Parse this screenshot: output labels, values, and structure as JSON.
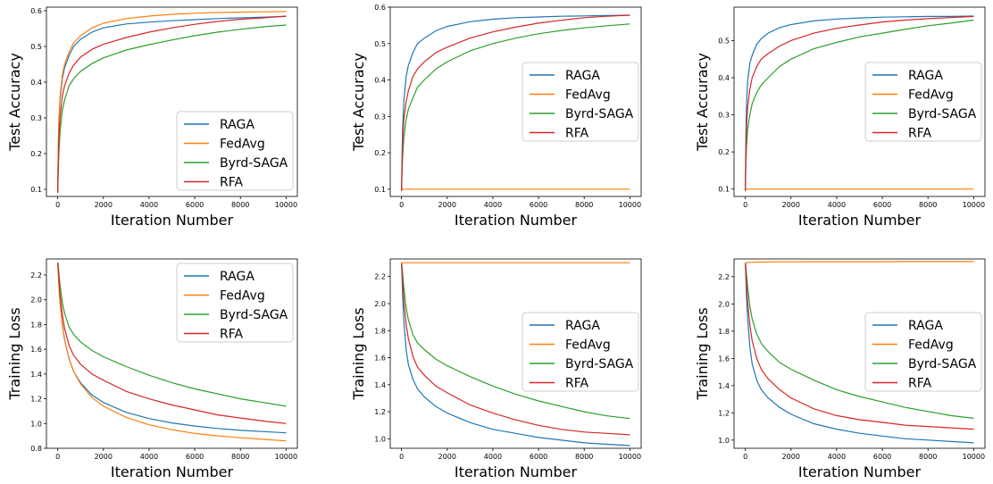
{
  "figure": {
    "grid": "2x3"
  },
  "colors": {
    "RAGA": "#1f77b4",
    "FedAvg": "#ff7f0e",
    "Byrd-SAGA": "#2ca02c",
    "RFA": "#d62728"
  },
  "chart_data": [
    {
      "type": "line",
      "title": "",
      "xlabel": "Iteration Number",
      "ylabel": "Test Accuracy",
      "xlim": [
        0,
        10000
      ],
      "ylim": [
        0.08,
        0.61
      ],
      "grid": false,
      "legend": "lower-right",
      "xticks": [
        "0",
        "2000",
        "4000",
        "6000",
        "8000",
        "10000"
      ],
      "yticks": [
        0.1,
        0.2,
        0.3,
        0.4,
        0.5,
        0.6
      ],
      "ytick_labels": [
        "0.1",
        "0.2",
        "0.3",
        "0.4",
        "0.5",
        "0.6"
      ],
      "x": [
        0,
        25,
        50,
        100,
        200,
        300,
        500,
        700,
        1000,
        1500,
        2000,
        3000,
        4000,
        5000,
        6000,
        7000,
        8000,
        9000,
        10000
      ],
      "series": [
        {
          "name": "RAGA",
          "values": [
            0.09,
            0.22,
            0.28,
            0.35,
            0.41,
            0.44,
            0.475,
            0.5,
            0.52,
            0.54,
            0.552,
            0.563,
            0.568,
            0.572,
            0.575,
            0.578,
            0.58,
            0.582,
            0.584
          ]
        },
        {
          "name": "FedAvg",
          "values": [
            0.09,
            0.23,
            0.29,
            0.36,
            0.42,
            0.45,
            0.485,
            0.51,
            0.53,
            0.552,
            0.565,
            0.578,
            0.585,
            0.59,
            0.593,
            0.595,
            0.596,
            0.597,
            0.598
          ]
        },
        {
          "name": "Byrd-SAGA",
          "values": [
            0.09,
            0.15,
            0.2,
            0.26,
            0.32,
            0.35,
            0.39,
            0.41,
            0.43,
            0.452,
            0.468,
            0.49,
            0.505,
            0.518,
            0.53,
            0.54,
            0.548,
            0.555,
            0.56
          ]
        },
        {
          "name": "RFA",
          "values": [
            0.09,
            0.18,
            0.24,
            0.3,
            0.36,
            0.39,
            0.425,
            0.448,
            0.47,
            0.492,
            0.506,
            0.525,
            0.54,
            0.552,
            0.562,
            0.57,
            0.576,
            0.58,
            0.585
          ]
        }
      ]
    },
    {
      "type": "line",
      "title": "",
      "xlabel": "Iteration Number",
      "ylabel": "Test Accuracy",
      "xlim": [
        0,
        10000
      ],
      "ylim": [
        0.08,
        0.6
      ],
      "grid": false,
      "legend": "center-right",
      "xticks": [
        "0",
        "2000",
        "4000",
        "6000",
        "8000",
        "10000"
      ],
      "yticks": [
        0.1,
        0.2,
        0.3,
        0.4,
        0.5,
        0.6
      ],
      "ytick_labels": [
        "0.1",
        "0.2",
        "0.3",
        "0.4",
        "0.5",
        "0.6"
      ],
      "x": [
        0,
        25,
        50,
        100,
        200,
        300,
        500,
        700,
        1000,
        1500,
        2000,
        3000,
        4000,
        5000,
        6000,
        7000,
        8000,
        9000,
        10000
      ],
      "series": [
        {
          "name": "RAGA",
          "values": [
            0.095,
            0.2,
            0.27,
            0.34,
            0.41,
            0.44,
            0.475,
            0.5,
            0.515,
            0.535,
            0.547,
            0.56,
            0.567,
            0.571,
            0.573,
            0.575,
            0.576,
            0.577,
            0.578
          ]
        },
        {
          "name": "FedAvg",
          "values": [
            0.1,
            0.1,
            0.1,
            0.1,
            0.1,
            0.1,
            0.1,
            0.1,
            0.1,
            0.1,
            0.1,
            0.1,
            0.1,
            0.1,
            0.1,
            0.1,
            0.1,
            0.1,
            0.1
          ]
        },
        {
          "name": "Byrd-SAGA",
          "values": [
            0.095,
            0.15,
            0.19,
            0.24,
            0.29,
            0.32,
            0.35,
            0.38,
            0.4,
            0.43,
            0.45,
            0.48,
            0.5,
            0.515,
            0.527,
            0.536,
            0.543,
            0.549,
            0.554
          ]
        },
        {
          "name": "RFA",
          "values": [
            0.095,
            0.18,
            0.23,
            0.29,
            0.34,
            0.37,
            0.41,
            0.43,
            0.45,
            0.475,
            0.49,
            0.515,
            0.532,
            0.545,
            0.556,
            0.564,
            0.571,
            0.575,
            0.578
          ]
        }
      ]
    },
    {
      "type": "line",
      "title": "",
      "xlabel": "Iteration Number",
      "ylabel": "Test Accuracy",
      "xlim": [
        0,
        10000
      ],
      "ylim": [
        0.08,
        0.59
      ],
      "grid": false,
      "legend": "center-right",
      "xticks": [
        "0",
        "2000",
        "4000",
        "6000",
        "8000",
        "10000"
      ],
      "yticks": [
        0.1,
        0.2,
        0.3,
        0.4,
        0.5
      ],
      "ytick_labels": [
        "0.1",
        "0.2",
        "0.3",
        "0.4",
        "0.5"
      ],
      "x": [
        0,
        25,
        50,
        100,
        200,
        300,
        500,
        700,
        1000,
        1500,
        2000,
        3000,
        4000,
        5000,
        6000,
        7000,
        8000,
        9000,
        10000
      ],
      "series": [
        {
          "name": "RAGA",
          "values": [
            0.095,
            0.25,
            0.32,
            0.39,
            0.44,
            0.46,
            0.49,
            0.505,
            0.52,
            0.535,
            0.543,
            0.553,
            0.558,
            0.561,
            0.563,
            0.564,
            0.565,
            0.565,
            0.566
          ]
        },
        {
          "name": "FedAvg",
          "values": [
            0.1,
            0.1,
            0.1,
            0.1,
            0.1,
            0.1,
            0.1,
            0.1,
            0.1,
            0.1,
            0.1,
            0.1,
            0.1,
            0.1,
            0.1,
            0.1,
            0.1,
            0.1,
            0.1
          ]
        },
        {
          "name": "Byrd-SAGA",
          "values": [
            0.095,
            0.17,
            0.21,
            0.26,
            0.3,
            0.33,
            0.36,
            0.38,
            0.4,
            0.43,
            0.45,
            0.478,
            0.495,
            0.51,
            0.52,
            0.53,
            0.54,
            0.547,
            0.555
          ]
        },
        {
          "name": "RFA",
          "values": [
            0.095,
            0.2,
            0.26,
            0.32,
            0.37,
            0.4,
            0.43,
            0.45,
            0.465,
            0.485,
            0.5,
            0.52,
            0.533,
            0.542,
            0.55,
            0.555,
            0.559,
            0.562,
            0.565
          ]
        }
      ]
    },
    {
      "type": "line",
      "title": "",
      "xlabel": "Iteration Number",
      "ylabel": "Training Loss",
      "xlim": [
        0,
        10000
      ],
      "ylim": [
        0.8,
        2.33
      ],
      "grid": false,
      "legend": "upper-right",
      "xticks": [
        "0",
        "2000",
        "4000",
        "6000",
        "8000",
        "10000"
      ],
      "yticks": [
        0.8,
        1.0,
        1.2,
        1.4,
        1.6,
        1.8,
        2.0,
        2.2
      ],
      "ytick_labels": [
        "0.8",
        "1.0",
        "1.2",
        "1.4",
        "1.6",
        "1.8",
        "2.0",
        "2.2"
      ],
      "x": [
        0,
        25,
        50,
        100,
        200,
        300,
        500,
        700,
        1000,
        1500,
        2000,
        3000,
        4000,
        5000,
        6000,
        7000,
        8000,
        9000,
        10000
      ],
      "series": [
        {
          "name": "RAGA",
          "values": [
            2.3,
            2.22,
            2.12,
            1.98,
            1.8,
            1.68,
            1.52,
            1.42,
            1.33,
            1.23,
            1.17,
            1.09,
            1.04,
            1.005,
            0.98,
            0.96,
            0.945,
            0.935,
            0.925
          ]
        },
        {
          "name": "FedAvg",
          "values": [
            2.3,
            2.22,
            2.12,
            1.98,
            1.8,
            1.68,
            1.52,
            1.42,
            1.32,
            1.21,
            1.14,
            1.05,
            0.99,
            0.95,
            0.92,
            0.9,
            0.885,
            0.872,
            0.86
          ]
        },
        {
          "name": "Byrd-SAGA",
          "values": [
            2.3,
            2.27,
            2.22,
            2.12,
            1.98,
            1.89,
            1.78,
            1.72,
            1.66,
            1.59,
            1.54,
            1.46,
            1.39,
            1.33,
            1.28,
            1.24,
            1.2,
            1.17,
            1.14
          ]
        },
        {
          "name": "RFA",
          "values": [
            2.3,
            2.25,
            2.18,
            2.05,
            1.88,
            1.77,
            1.63,
            1.55,
            1.48,
            1.4,
            1.35,
            1.26,
            1.2,
            1.15,
            1.11,
            1.07,
            1.045,
            1.02,
            1.0
          ]
        }
      ]
    },
    {
      "type": "line",
      "title": "",
      "xlabel": "Iteration Number",
      "ylabel": "Training Loss",
      "xlim": [
        0,
        10000
      ],
      "ylim": [
        0.93,
        2.33
      ],
      "grid": false,
      "legend": "center-right",
      "xticks": [
        "0",
        "2000",
        "4000",
        "6000",
        "8000",
        "10000"
      ],
      "yticks": [
        1.0,
        1.2,
        1.4,
        1.6,
        1.8,
        2.0,
        2.2
      ],
      "ytick_labels": [
        "1.0",
        "1.2",
        "1.4",
        "1.6",
        "1.8",
        "2.0",
        "2.2"
      ],
      "x": [
        0,
        25,
        50,
        100,
        200,
        300,
        500,
        700,
        1000,
        1500,
        2000,
        3000,
        4000,
        5000,
        6000,
        7000,
        8000,
        9000,
        10000
      ],
      "series": [
        {
          "name": "RAGA",
          "values": [
            2.3,
            2.18,
            2.05,
            1.88,
            1.66,
            1.55,
            1.44,
            1.37,
            1.31,
            1.24,
            1.19,
            1.12,
            1.07,
            1.04,
            1.01,
            0.99,
            0.97,
            0.96,
            0.95
          ]
        },
        {
          "name": "FedAvg",
          "values": [
            2.3,
            2.302,
            2.302,
            2.302,
            2.302,
            2.302,
            2.302,
            2.302,
            2.302,
            2.302,
            2.302,
            2.302,
            2.302,
            2.302,
            2.302,
            2.302,
            2.302,
            2.302,
            2.302
          ]
        },
        {
          "name": "Byrd-SAGA",
          "values": [
            2.3,
            2.27,
            2.22,
            2.12,
            1.97,
            1.88,
            1.77,
            1.71,
            1.66,
            1.59,
            1.54,
            1.46,
            1.39,
            1.33,
            1.28,
            1.24,
            1.2,
            1.17,
            1.15
          ]
        },
        {
          "name": "RFA",
          "values": [
            2.3,
            2.24,
            2.16,
            2.02,
            1.85,
            1.74,
            1.61,
            1.53,
            1.47,
            1.39,
            1.34,
            1.25,
            1.19,
            1.14,
            1.1,
            1.07,
            1.05,
            1.04,
            1.03
          ]
        }
      ]
    },
    {
      "type": "line",
      "title": "",
      "xlabel": "Iteration Number",
      "ylabel": "Training Loss",
      "xlim": [
        0,
        10000
      ],
      "ylim": [
        0.94,
        2.33
      ],
      "grid": false,
      "legend": "center-right",
      "xticks": [
        "0",
        "2000",
        "4000",
        "6000",
        "8000",
        "10000"
      ],
      "yticks": [
        1.0,
        1.2,
        1.4,
        1.6,
        1.8,
        2.0,
        2.2
      ],
      "ytick_labels": [
        "1.0",
        "1.2",
        "1.4",
        "1.6",
        "1.8",
        "2.0",
        "2.2"
      ],
      "x": [
        0,
        25,
        50,
        100,
        200,
        300,
        500,
        700,
        1000,
        1500,
        2000,
        3000,
        4000,
        5000,
        6000,
        7000,
        8000,
        9000,
        10000
      ],
      "series": [
        {
          "name": "RAGA",
          "values": [
            2.3,
            2.18,
            2.06,
            1.9,
            1.68,
            1.56,
            1.44,
            1.37,
            1.31,
            1.24,
            1.19,
            1.12,
            1.08,
            1.05,
            1.03,
            1.01,
            1.0,
            0.99,
            0.98
          ]
        },
        {
          "name": "FedAvg",
          "values": [
            2.3,
            2.302,
            2.303,
            2.304,
            2.305,
            2.306,
            2.307,
            2.308,
            2.308,
            2.309,
            2.309,
            2.31,
            2.31,
            2.31,
            2.31,
            2.311,
            2.311,
            2.311,
            2.311
          ]
        },
        {
          "name": "Byrd-SAGA",
          "values": [
            2.3,
            2.27,
            2.22,
            2.13,
            1.98,
            1.89,
            1.78,
            1.71,
            1.65,
            1.57,
            1.52,
            1.44,
            1.37,
            1.32,
            1.28,
            1.24,
            1.21,
            1.18,
            1.16
          ]
        },
        {
          "name": "RFA",
          "values": [
            2.3,
            2.24,
            2.16,
            2.02,
            1.84,
            1.73,
            1.6,
            1.52,
            1.45,
            1.37,
            1.31,
            1.23,
            1.18,
            1.15,
            1.13,
            1.11,
            1.1,
            1.09,
            1.08
          ]
        }
      ]
    }
  ]
}
